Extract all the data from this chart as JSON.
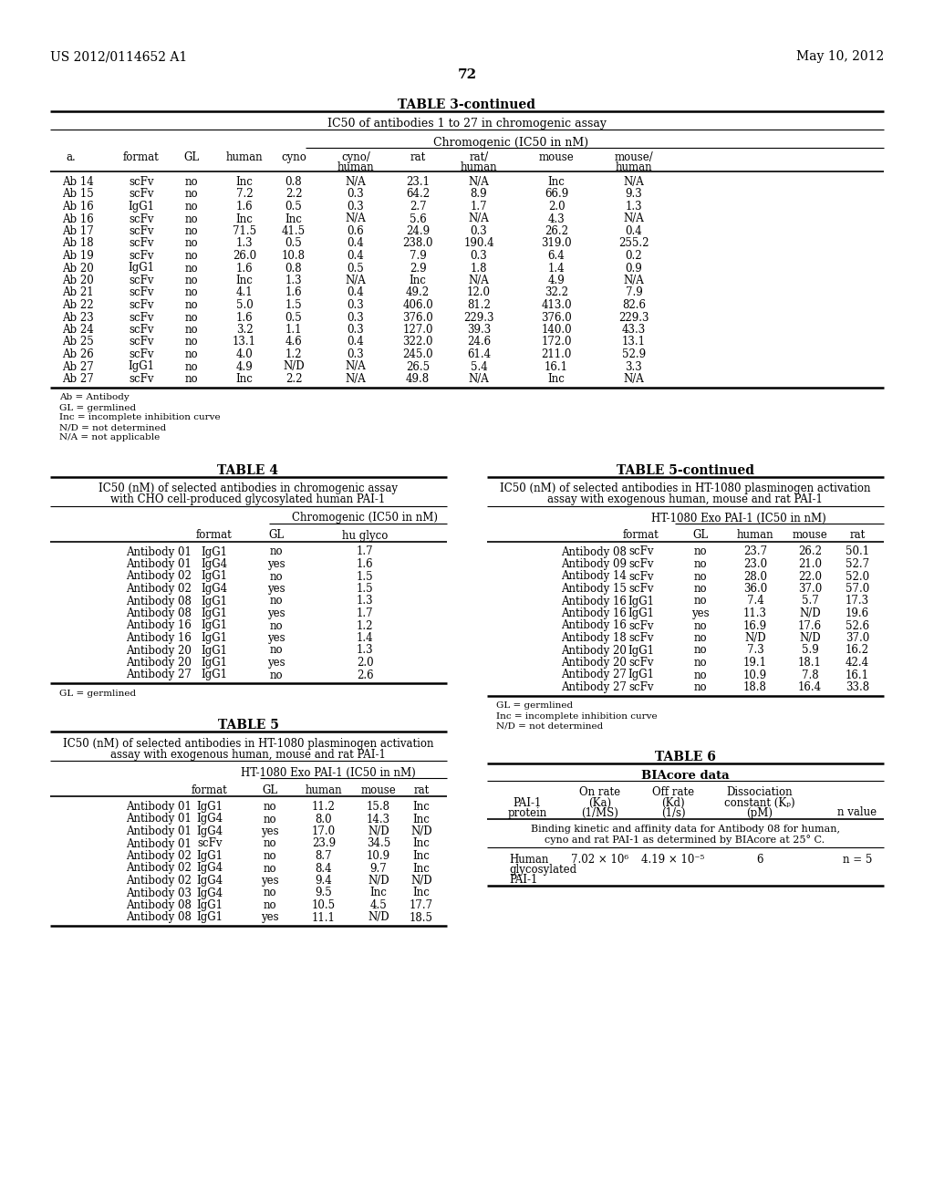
{
  "header_left": "US 2012/0114652 A1",
  "header_right": "May 10, 2012",
  "page_number": "72",
  "table3_title": "TABLE 3-continued",
  "table3_subtitle": "IC50 of antibodies 1 to 27 in chromogenic assay",
  "table3_col_header": "Chromogenic (IC50 in nM)",
  "table3_data": [
    [
      "Ab 14",
      "scFv",
      "no",
      "Inc",
      "0.8",
      "N/A",
      "23.1",
      "N/A",
      "Inc",
      "N/A"
    ],
    [
      "Ab 15",
      "scFv",
      "no",
      "7.2",
      "2.2",
      "0.3",
      "64.2",
      "8.9",
      "66.9",
      "9.3"
    ],
    [
      "Ab 16",
      "IgG1",
      "no",
      "1.6",
      "0.5",
      "0.3",
      "2.7",
      "1.7",
      "2.0",
      "1.3"
    ],
    [
      "Ab 16",
      "scFv",
      "no",
      "Inc",
      "Inc",
      "N/A",
      "5.6",
      "N/A",
      "4.3",
      "N/A"
    ],
    [
      "Ab 17",
      "scFv",
      "no",
      "71.5",
      "41.5",
      "0.6",
      "24.9",
      "0.3",
      "26.2",
      "0.4"
    ],
    [
      "Ab 18",
      "scFv",
      "no",
      "1.3",
      "0.5",
      "0.4",
      "238.0",
      "190.4",
      "319.0",
      "255.2"
    ],
    [
      "Ab 19",
      "scFv",
      "no",
      "26.0",
      "10.8",
      "0.4",
      "7.9",
      "0.3",
      "6.4",
      "0.2"
    ],
    [
      "Ab 20",
      "IgG1",
      "no",
      "1.6",
      "0.8",
      "0.5",
      "2.9",
      "1.8",
      "1.4",
      "0.9"
    ],
    [
      "Ab 20",
      "scFv",
      "no",
      "Inc",
      "1.3",
      "N/A",
      "Inc",
      "N/A",
      "4.9",
      "N/A"
    ],
    [
      "Ab 21",
      "scFv",
      "no",
      "4.1",
      "1.6",
      "0.4",
      "49.2",
      "12.0",
      "32.2",
      "7.9"
    ],
    [
      "Ab 22",
      "scFv",
      "no",
      "5.0",
      "1.5",
      "0.3",
      "406.0",
      "81.2",
      "413.0",
      "82.6"
    ],
    [
      "Ab 23",
      "scFv",
      "no",
      "1.6",
      "0.5",
      "0.3",
      "376.0",
      "229.3",
      "376.0",
      "229.3"
    ],
    [
      "Ab 24",
      "scFv",
      "no",
      "3.2",
      "1.1",
      "0.3",
      "127.0",
      "39.3",
      "140.0",
      "43.3"
    ],
    [
      "Ab 25",
      "scFv",
      "no",
      "13.1",
      "4.6",
      "0.4",
      "322.0",
      "24.6",
      "172.0",
      "13.1"
    ],
    [
      "Ab 26",
      "scFv",
      "no",
      "4.0",
      "1.2",
      "0.3",
      "245.0",
      "61.4",
      "211.0",
      "52.9"
    ],
    [
      "Ab 27",
      "IgG1",
      "no",
      "4.9",
      "N/D",
      "N/A",
      "26.5",
      "5.4",
      "16.1",
      "3.3"
    ],
    [
      "Ab 27",
      "scFv",
      "no",
      "Inc",
      "2.2",
      "N/A",
      "49.8",
      "N/A",
      "Inc",
      "N/A"
    ]
  ],
  "table3_footnotes": [
    "Ab = Antibody",
    "GL = germlined",
    "Inc = incomplete inhibition curve",
    "N/D = not determined",
    "N/A = not applicable"
  ],
  "table4_title": "TABLE 4",
  "table4_subtitle1": "IC50 (nM) of selected antibodies in chromogenic assay",
  "table4_subtitle2": "with CHO cell-produced glycosylated human PAI-1",
  "table4_data": [
    [
      "Antibody 01",
      "IgG1",
      "no",
      "1.7"
    ],
    [
      "Antibody 01",
      "IgG4",
      "yes",
      "1.6"
    ],
    [
      "Antibody 02",
      "IgG1",
      "no",
      "1.5"
    ],
    [
      "Antibody 02",
      "IgG4",
      "yes",
      "1.5"
    ],
    [
      "Antibody 08",
      "IgG1",
      "no",
      "1.3"
    ],
    [
      "Antibody 08",
      "IgG1",
      "yes",
      "1.7"
    ],
    [
      "Antibody 16",
      "IgG1",
      "no",
      "1.2"
    ],
    [
      "Antibody 16",
      "IgG1",
      "yes",
      "1.4"
    ],
    [
      "Antibody 20",
      "IgG1",
      "no",
      "1.3"
    ],
    [
      "Antibody 20",
      "IgG1",
      "yes",
      "2.0"
    ],
    [
      "Antibody 27",
      "IgG1",
      "no",
      "2.6"
    ]
  ],
  "table4_footnote": "GL = germlined",
  "table5_title": "TABLE 5",
  "table5_subtitle1": "IC50 (nM) of selected antibodies in HT-1080 plasminogen activation",
  "table5_subtitle2": "assay with exogenous human, mouse and rat PAI-1",
  "table5_col_header": "HT-1080 Exo PAI-1 (IC50 in nM)",
  "table5_data": [
    [
      "Antibody 01",
      "IgG1",
      "no",
      "11.2",
      "15.8",
      "Inc"
    ],
    [
      "Antibody 01",
      "IgG4",
      "no",
      "8.0",
      "14.3",
      "Inc"
    ],
    [
      "Antibody 01",
      "IgG4",
      "yes",
      "17.0",
      "N/D",
      "N/D"
    ],
    [
      "Antibody 01",
      "scFv",
      "no",
      "23.9",
      "34.5",
      "Inc"
    ],
    [
      "Antibody 02",
      "IgG1",
      "no",
      "8.7",
      "10.9",
      "Inc"
    ],
    [
      "Antibody 02",
      "IgG4",
      "no",
      "8.4",
      "9.7",
      "Inc"
    ],
    [
      "Antibody 02",
      "IgG4",
      "yes",
      "9.4",
      "N/D",
      "N/D"
    ],
    [
      "Antibody 03",
      "IgG4",
      "no",
      "9.5",
      "Inc",
      "Inc"
    ],
    [
      "Antibody 08",
      "IgG1",
      "no",
      "10.5",
      "4.5",
      "17.7"
    ],
    [
      "Antibody 08",
      "IgG1",
      "yes",
      "11.1",
      "N/D",
      "18.5"
    ]
  ],
  "table5c_title": "TABLE 5-continued",
  "table5c_subtitle1": "IC50 (nM) of selected antibodies in HT-1080 plasminogen activation",
  "table5c_subtitle2": "assay with exogenous human, mouse and rat PAI-1",
  "table5c_col_header": "HT-1080 Exo PAI-1 (IC50 in nM)",
  "table5c_data": [
    [
      "Antibody 08",
      "scFv",
      "no",
      "23.7",
      "26.2",
      "50.1"
    ],
    [
      "Antibody 09",
      "scFv",
      "no",
      "23.0",
      "21.0",
      "52.7"
    ],
    [
      "Antibody 14",
      "scFv",
      "no",
      "28.0",
      "22.0",
      "52.0"
    ],
    [
      "Antibody 15",
      "scFv",
      "no",
      "36.0",
      "37.0",
      "57.0"
    ],
    [
      "Antibody 16",
      "IgG1",
      "no",
      "7.4",
      "5.7",
      "17.3"
    ],
    [
      "Antibody 16",
      "IgG1",
      "yes",
      "11.3",
      "N/D",
      "19.6"
    ],
    [
      "Antibody 16",
      "scFv",
      "no",
      "16.9",
      "17.6",
      "52.6"
    ],
    [
      "Antibody 18",
      "scFv",
      "no",
      "N/D",
      "N/D",
      "37.0"
    ],
    [
      "Antibody 20",
      "IgG1",
      "no",
      "7.3",
      "5.9",
      "16.2"
    ],
    [
      "Antibody 20",
      "scFv",
      "no",
      "19.1",
      "18.1",
      "42.4"
    ],
    [
      "Antibody 27",
      "IgG1",
      "no",
      "10.9",
      "7.8",
      "16.1"
    ],
    [
      "Antibody 27",
      "scFv",
      "no",
      "18.8",
      "16.4",
      "33.8"
    ]
  ],
  "table5c_footnotes": [
    "GL = germlined",
    "Inc = incomplete inhibition curve",
    "N/D = not determined"
  ],
  "table6_title": "TABLE 6",
  "table6_subtitle": "BIAcore data",
  "table6_col1": "PAI-1\nprotein",
  "table6_col2": "On rate\n(Ka)\n(1/MS)",
  "table6_col3": "Off rate\n(Kd)\n(1/s)",
  "table6_col4": "Dissociation\nconstant (Kₚ)\n(pM)",
  "table6_col5": "n value",
  "table6_note1": "Binding kinetic and affinity data for Antibody 08 for human,",
  "table6_note2": "cyno and rat PAI-1 as determined by BIAcore at 25° C.",
  "table6_row_label": "Human\nglycosylated\nPAI-1",
  "table6_ka": "7.02 × 10⁶",
  "table6_kd": "4.19 × 10⁻⁵",
  "table6_kD": "6",
  "table6_n": "n = 5"
}
